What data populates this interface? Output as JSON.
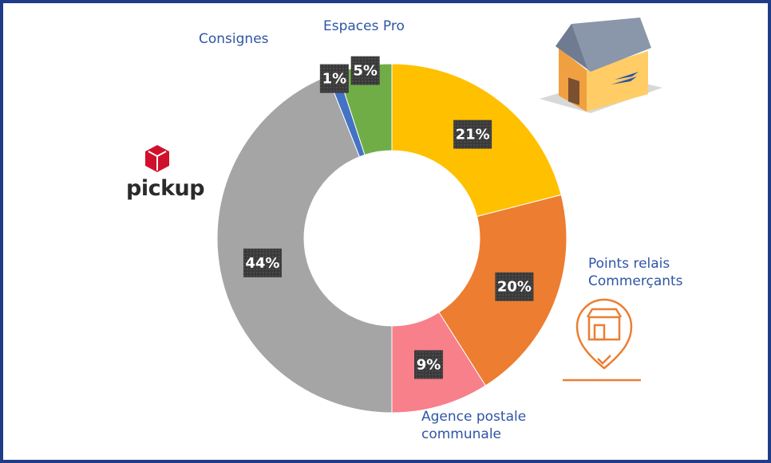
{
  "chart_data": {
    "type": "donut",
    "categories": [
      null,
      "Points relais\nCommerçants",
      "Agence postale\ncommunale",
      "pickup",
      "Consignes",
      "Espaces Pro"
    ],
    "values": [
      21,
      20,
      9,
      44,
      1,
      5
    ],
    "value_labels": [
      "21%",
      "20%",
      "9%",
      "44%",
      "1%",
      "5%"
    ],
    "colors": [
      "#FFC000",
      "#ED7D31",
      "#F8808A",
      "#A5A5A5",
      "#4472C4",
      "#70AD47"
    ]
  }
}
